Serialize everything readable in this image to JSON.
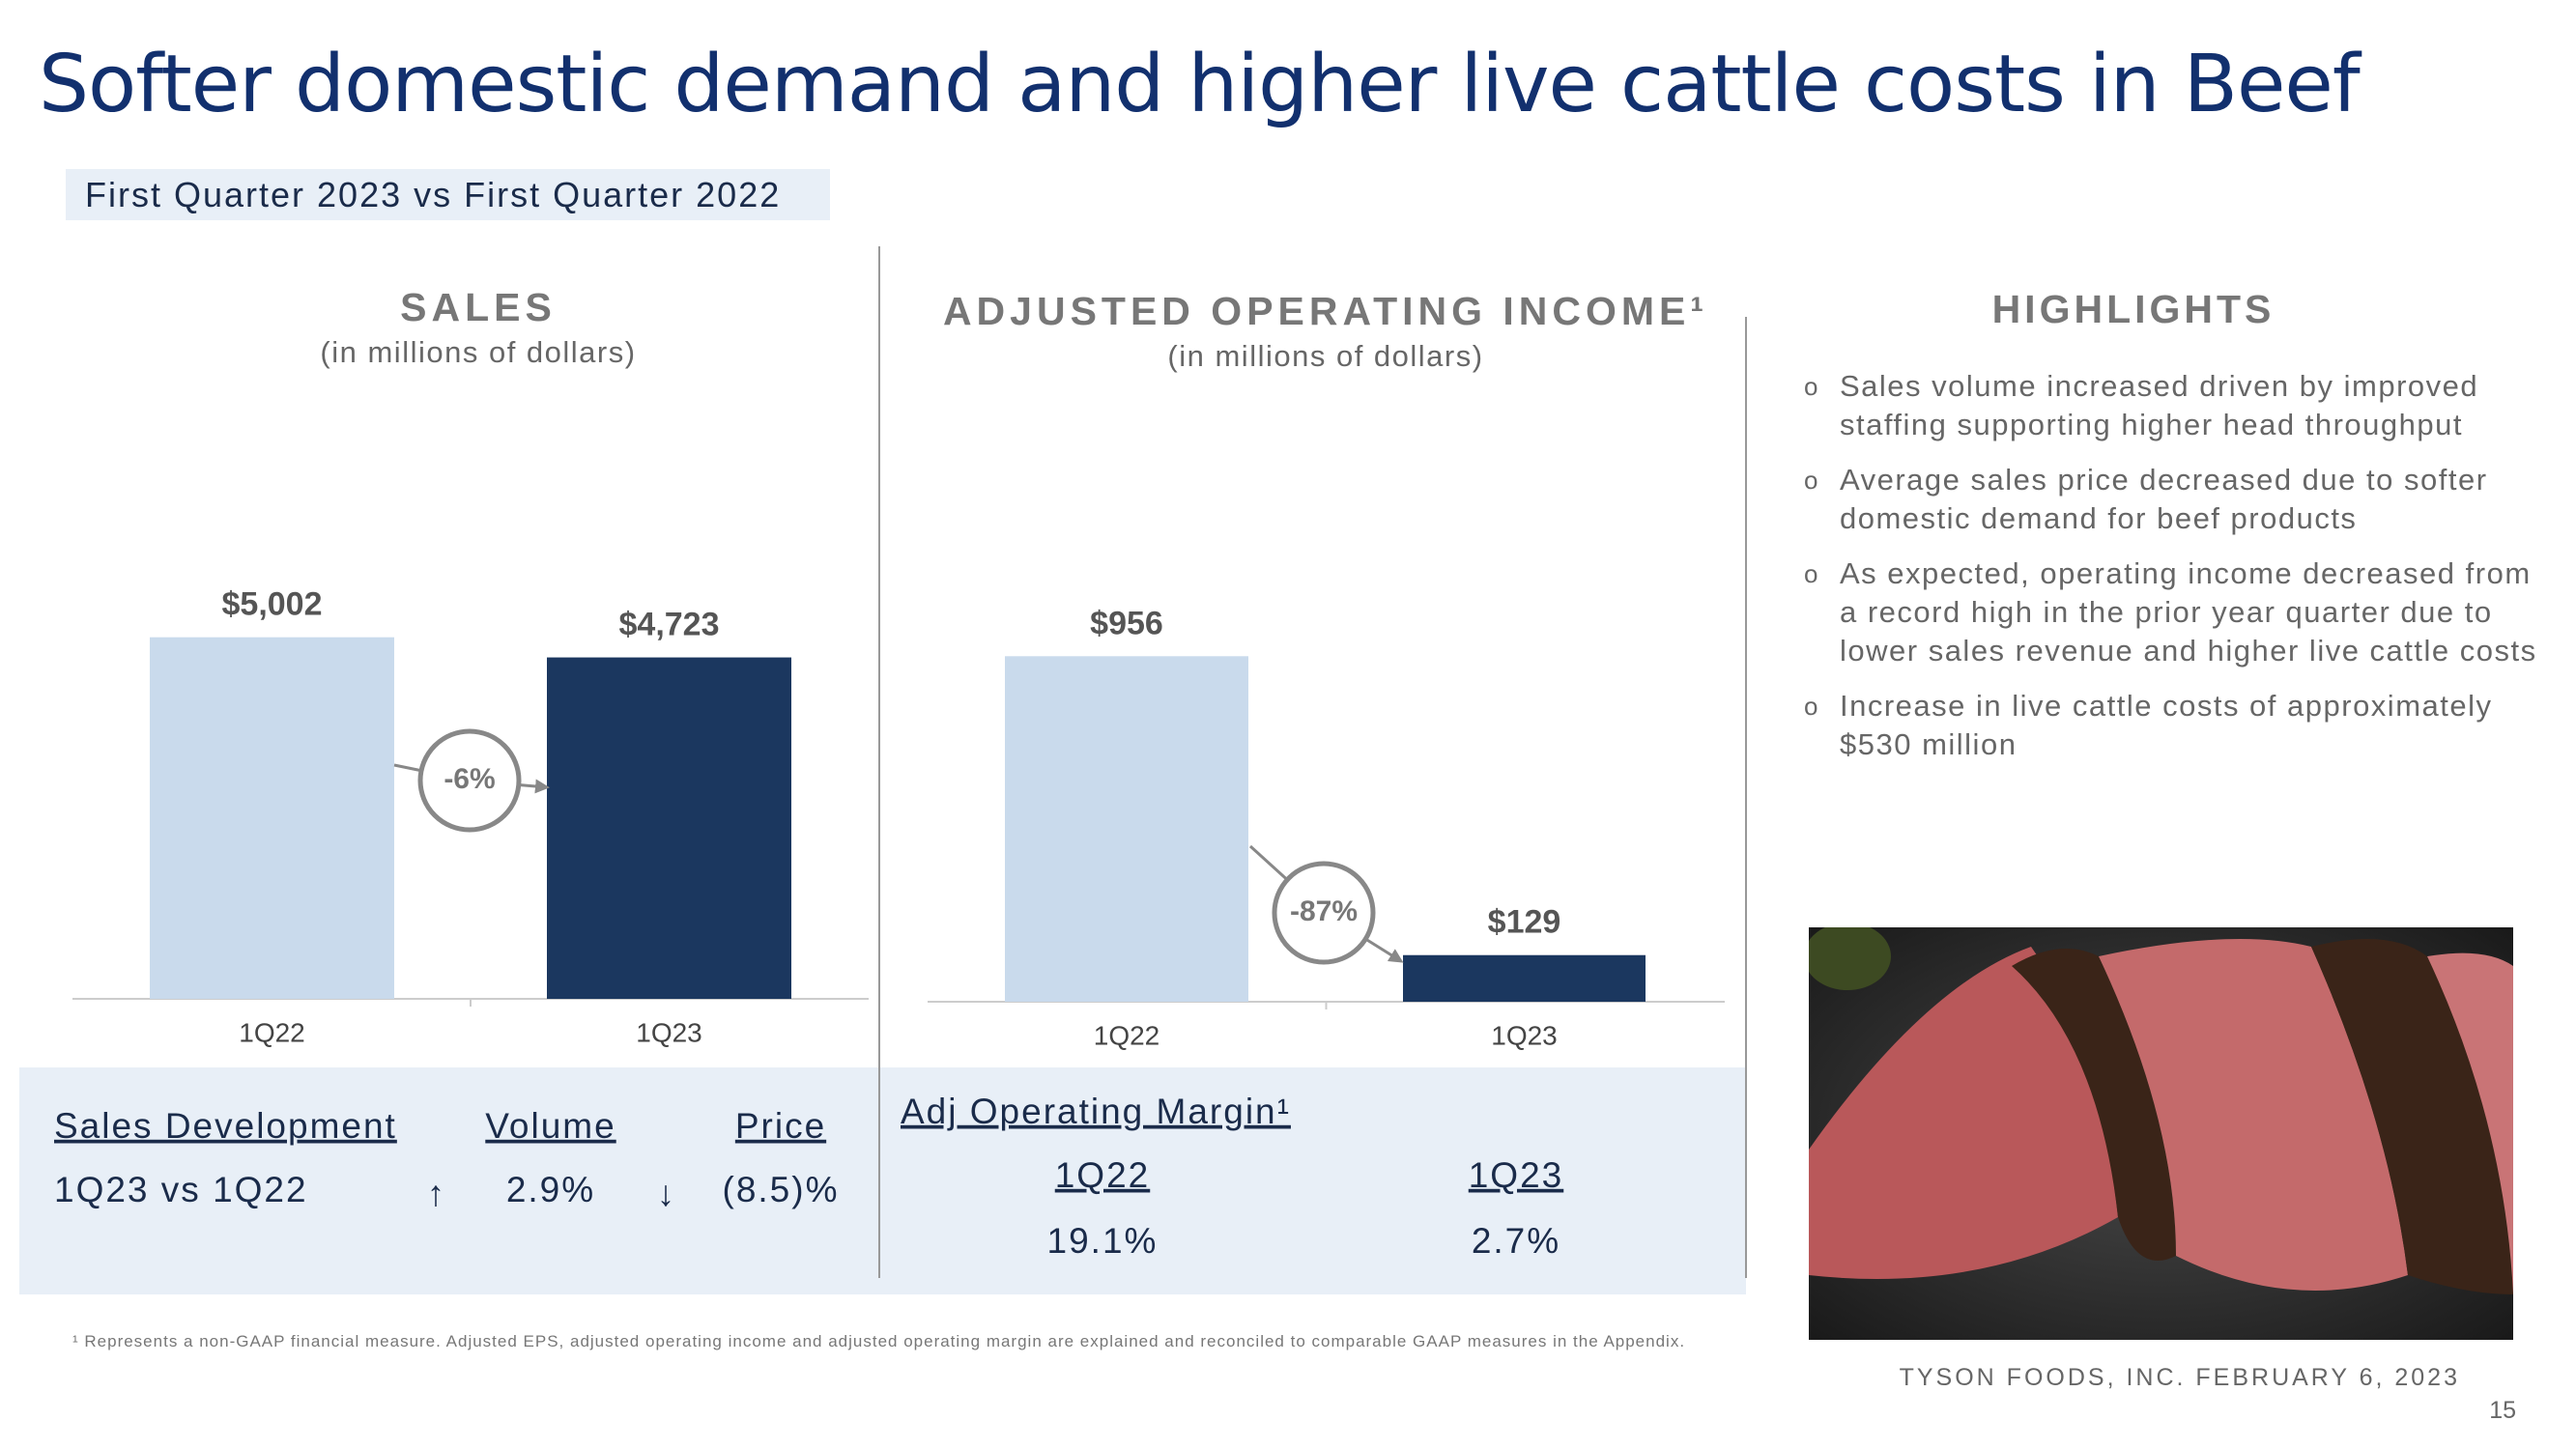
{
  "title": "Softer domestic demand and higher live cattle costs in Beef",
  "subtitle": "First Quarter 2023 vs First Quarter 2022",
  "chart_data": [
    {
      "type": "bar",
      "title": "SALES",
      "subtitle": "(in millions of dollars)",
      "categories": [
        "1Q22",
        "1Q23"
      ],
      "values": [
        5002,
        4723
      ],
      "value_labels": [
        "$5,002",
        "$4,723"
      ],
      "colors": [
        "#c9daec",
        "#1b375f"
      ],
      "ylim": [
        0,
        6000
      ],
      "annotation": "-6%"
    },
    {
      "type": "bar",
      "title": "ADJUSTED OPERATING INCOME¹",
      "subtitle": "(in millions of dollars)",
      "categories": [
        "1Q22",
        "1Q23"
      ],
      "values": [
        956,
        129
      ],
      "value_labels": [
        "$956",
        "$129"
      ],
      "colors": [
        "#c9daec",
        "#1b375f"
      ],
      "ylim": [
        0,
        1200
      ],
      "annotation": "-87%"
    }
  ],
  "sales_development": {
    "header": [
      "Sales Development",
      "Volume",
      "Price"
    ],
    "row": [
      "1Q23 vs 1Q22",
      "↑",
      "2.9%",
      "↓",
      "(8.5)%"
    ]
  },
  "margin": {
    "title": "Adj Operating Margin¹",
    "header": [
      "1Q22",
      "1Q23"
    ],
    "values": [
      "19.1%",
      "2.7%"
    ]
  },
  "highlights": {
    "title": "HIGHLIGHTS",
    "items": [
      "Sales volume increased driven by improved staffing supporting higher head throughput",
      "Average sales price decreased due to softer domestic demand for beef products",
      "As expected, operating income decreased from a record high in the prior year quarter due to lower sales revenue and higher live cattle costs",
      "Increase in live cattle costs of approximately $530 million"
    ]
  },
  "footnote": "¹ Represents a non-GAAP financial measure. Adjusted EPS, adjusted operating income and adjusted operating margin are explained and reconciled to comparable GAAP measures in the Appendix.",
  "footer": "TYSON FOODS, INC. FEBRUARY 6, 2023",
  "page_number": "15"
}
